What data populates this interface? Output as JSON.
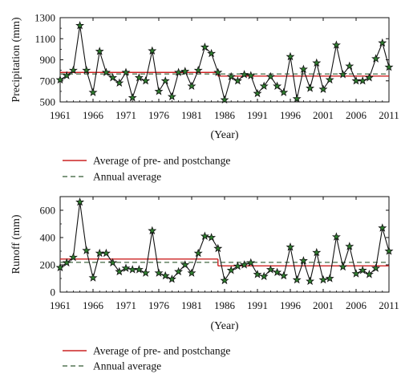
{
  "chart_data": [
    {
      "type": "line",
      "ylabel": "Precipitation (mm)",
      "xlabel": "(Year)",
      "xlim": [
        1961,
        2011
      ],
      "ylim": [
        500,
        1300
      ],
      "xticks": [
        "1961",
        "1966",
        "1971",
        "1976",
        "1981",
        "1986",
        "1991",
        "1996",
        "2001",
        "2006",
        "2011"
      ],
      "yticks": [
        "500",
        "700",
        "900",
        "1100",
        "1300"
      ],
      "legend_position": "below",
      "colors": {
        "series": "#111111",
        "marker": "#2e7d2e",
        "pre_post": "#cc2222",
        "annual": "#557755"
      },
      "series": [
        {
          "x": [
            1961,
            1962,
            1963,
            1964,
            1965,
            1966,
            1967,
            1968,
            1969,
            1970,
            1971,
            1972,
            1973,
            1974,
            1975,
            1976,
            1977,
            1978,
            1979,
            1980,
            1981,
            1982,
            1983,
            1984,
            1985,
            1986,
            1987,
            1988,
            1989,
            1990,
            1991,
            1992,
            1993,
            1994,
            1995,
            1996,
            1997,
            1998,
            1999,
            2000,
            2001,
            2002,
            2003,
            2004,
            2005,
            2006,
            2007,
            2008,
            2009,
            2010,
            2011
          ],
          "values": [
            710,
            750,
            800,
            1225,
            800,
            590,
            980,
            780,
            730,
            680,
            780,
            540,
            730,
            700,
            985,
            600,
            700,
            550,
            780,
            790,
            650,
            800,
            1020,
            960,
            780,
            520,
            740,
            700,
            760,
            750,
            580,
            650,
            740,
            650,
            590,
            930,
            530,
            810,
            630,
            870,
            620,
            710,
            1040,
            760,
            840,
            700,
            700,
            730,
            910,
            1060,
            830
          ]
        }
      ],
      "reference_lines": [
        {
          "name": "Average of pre- and postchange",
          "style": "solid",
          "segments": [
            {
              "x": [
                1961,
                1985
              ],
              "y": 780
            },
            {
              "x": [
                1985,
                2011
              ],
              "y": 745
            }
          ]
        },
        {
          "name": "Annual average",
          "style": "dashed",
          "segments": [
            {
              "x": [
                1961,
                2011
              ],
              "y": 765
            }
          ]
        }
      ]
    },
    {
      "type": "line",
      "ylabel": "Runoff (mm)",
      "xlabel": "(Year)",
      "xlim": [
        1961,
        2011
      ],
      "ylim": [
        0,
        700
      ],
      "xticks": [
        "1961",
        "1966",
        "1971",
        "1976",
        "1981",
        "1986",
        "1991",
        "1996",
        "2001",
        "2006",
        "2011"
      ],
      "yticks": [
        "0",
        "200",
        "400",
        "600"
      ],
      "legend_position": "below",
      "colors": {
        "series": "#111111",
        "marker": "#2e7d2e",
        "pre_post": "#cc2222",
        "annual": "#557755"
      },
      "series": [
        {
          "x": [
            1961,
            1962,
            1963,
            1964,
            1965,
            1966,
            1967,
            1968,
            1969,
            1970,
            1971,
            1972,
            1973,
            1974,
            1975,
            1976,
            1977,
            1978,
            1979,
            1980,
            1981,
            1982,
            1983,
            1984,
            1985,
            1986,
            1987,
            1988,
            1989,
            1990,
            1991,
            1992,
            1993,
            1994,
            1995,
            1996,
            1997,
            1998,
            1999,
            2000,
            2001,
            2002,
            2003,
            2004,
            2005,
            2006,
            2007,
            2008,
            2009,
            2010,
            2011
          ],
          "values": [
            180,
            215,
            255,
            660,
            305,
            105,
            285,
            285,
            215,
            150,
            175,
            165,
            165,
            140,
            450,
            140,
            120,
            95,
            150,
            200,
            140,
            285,
            410,
            400,
            320,
            85,
            160,
            190,
            200,
            215,
            130,
            115,
            165,
            145,
            120,
            330,
            90,
            230,
            80,
            290,
            90,
            100,
            405,
            185,
            335,
            135,
            160,
            130,
            175,
            470,
            300
          ]
        }
      ],
      "reference_lines": [
        {
          "name": "Average of pre- and postchange",
          "style": "solid",
          "segments": [
            {
              "x": [
                1961,
                1985
              ],
              "y": 242
            },
            {
              "x": [
                1985,
                2011
              ],
              "y": 192
            }
          ]
        },
        {
          "name": "Annual average",
          "style": "dashed",
          "segments": [
            {
              "x": [
                1961,
                2011
              ],
              "y": 218
            }
          ]
        }
      ]
    }
  ]
}
